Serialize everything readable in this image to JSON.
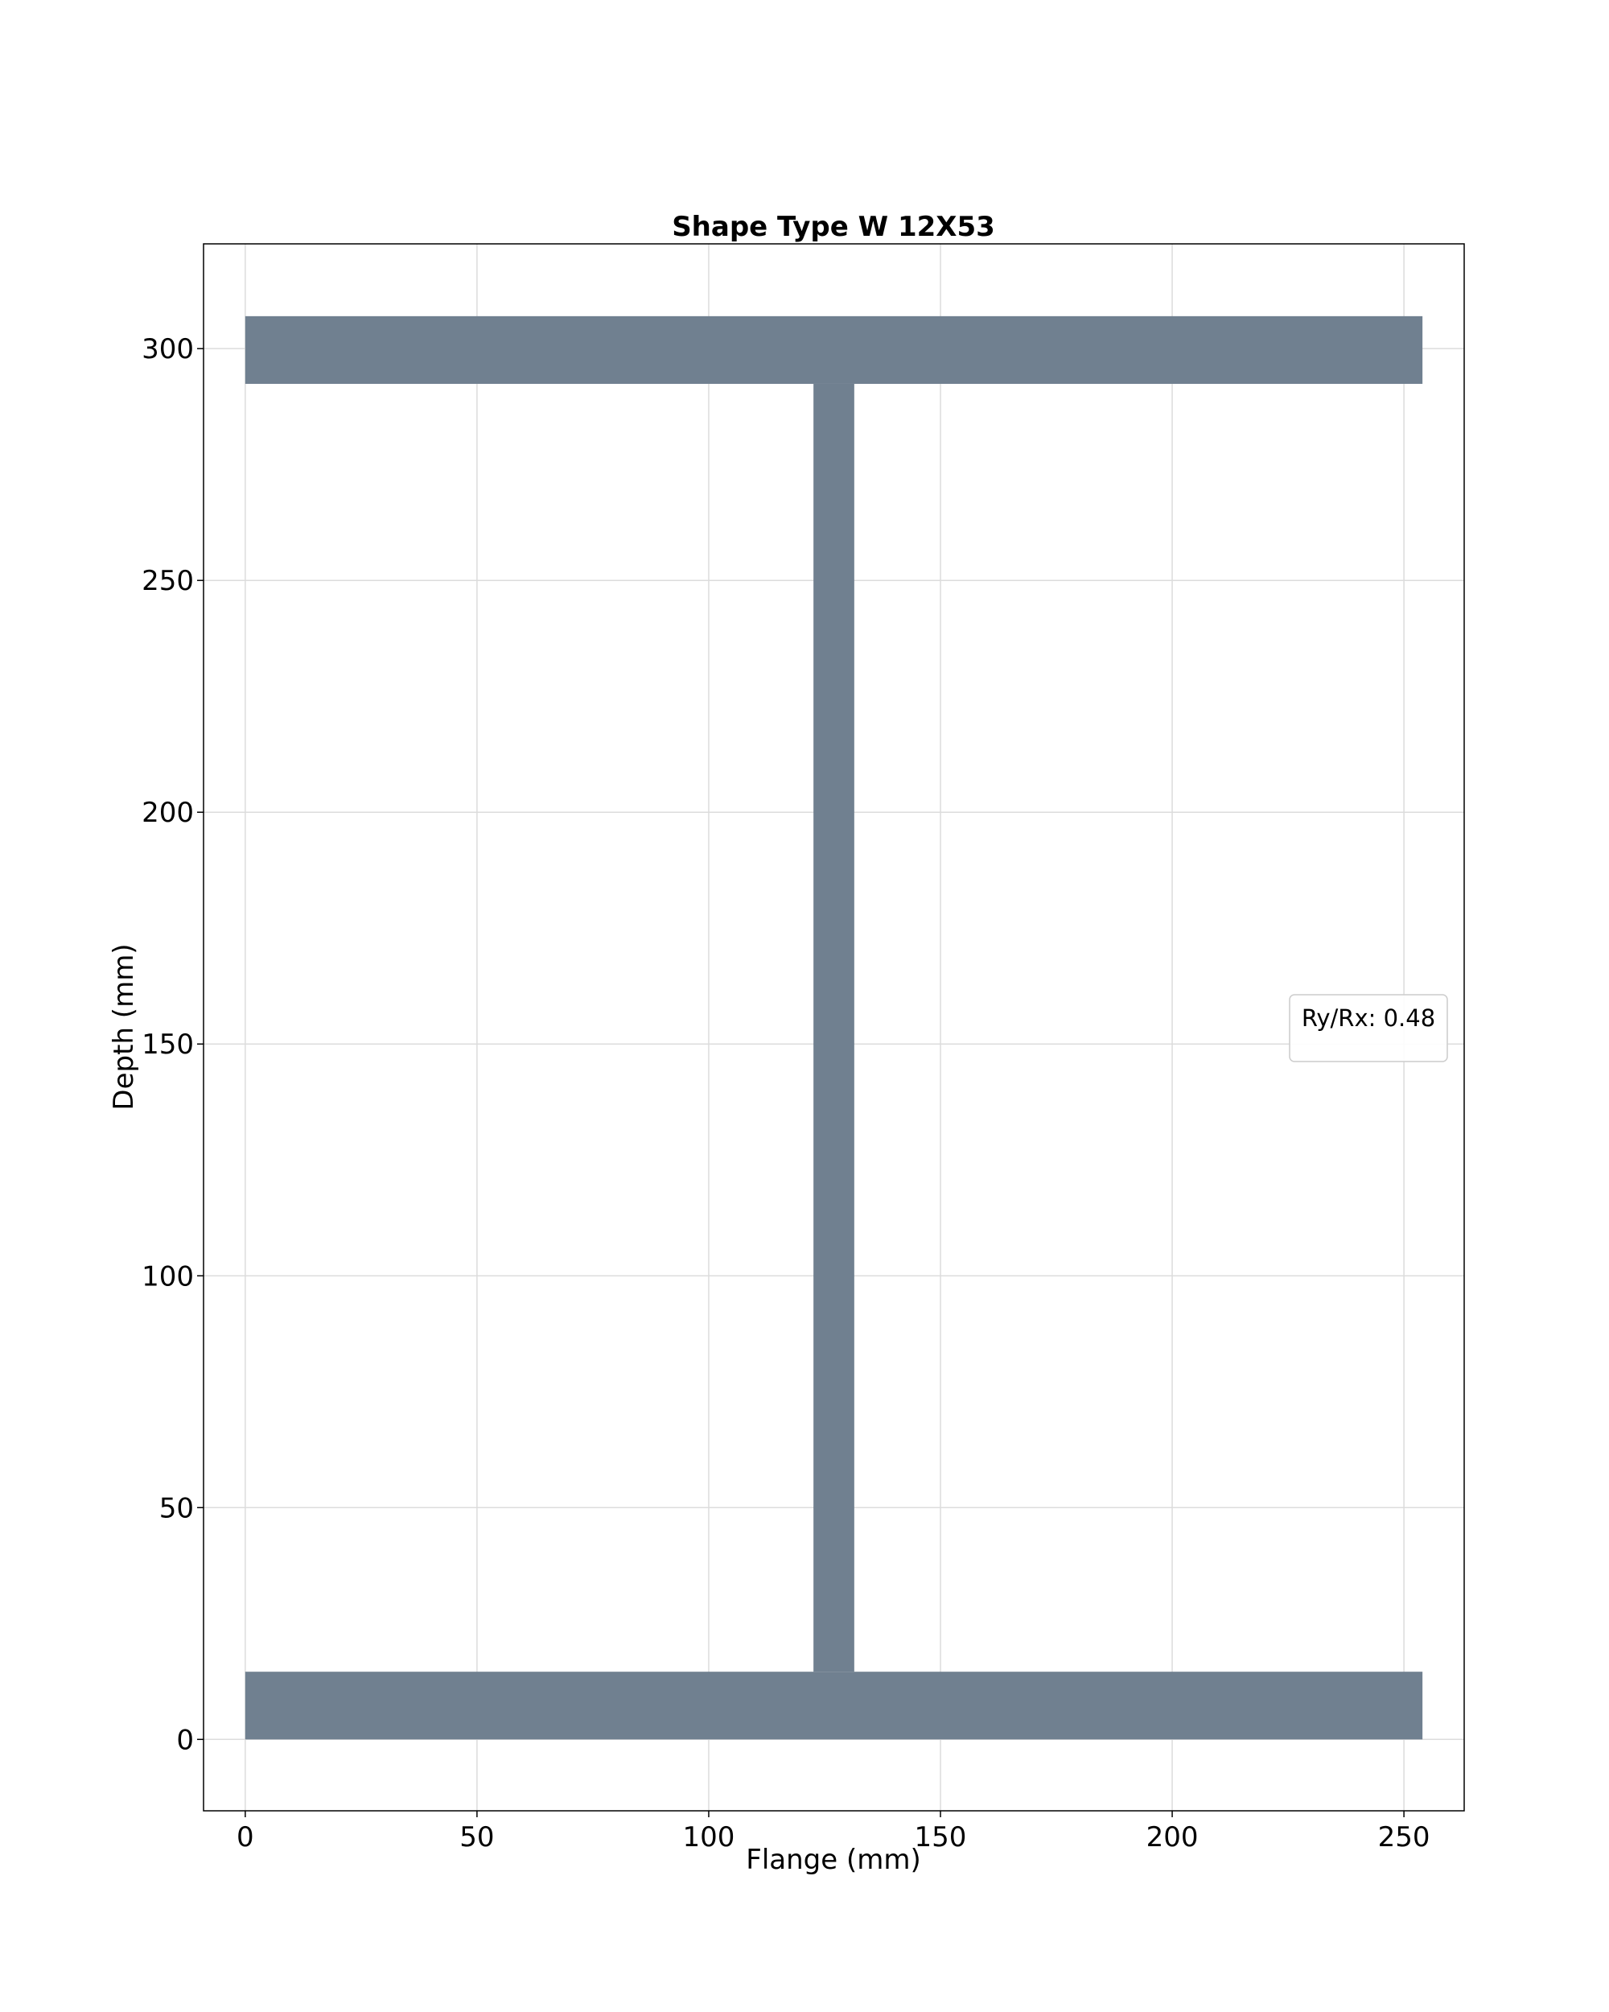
{
  "chart_data": {
    "type": "area",
    "title": "Shape Type W 12X53",
    "xlabel": "Flange (mm)",
    "ylabel": "Depth (mm)",
    "xlim": [
      -9,
      263
    ],
    "ylim": [
      -15.4,
      322.6
    ],
    "xticks": [
      0,
      50,
      100,
      150,
      200,
      250
    ],
    "yticks": [
      0,
      50,
      100,
      150,
      200,
      250,
      300
    ],
    "grid": true,
    "legend": {
      "placement": "right",
      "text": "Ry/Rx: 0.48"
    },
    "fill_color": "#708090",
    "section": {
      "flange_width": 254,
      "depth": 307,
      "flange_thickness": 14.6,
      "web_thickness": 8.8,
      "web_x_start": 122.6,
      "web_x_end": 131.4
    },
    "shapes": [
      {
        "name": "bottom-flange",
        "x": [
          0,
          254
        ],
        "y": [
          0,
          14.6
        ]
      },
      {
        "name": "web",
        "x": [
          122.6,
          131.4
        ],
        "y": [
          14.6,
          292.4
        ]
      },
      {
        "name": "top-flange",
        "x": [
          0,
          254
        ],
        "y": [
          292.4,
          307
        ]
      }
    ]
  }
}
